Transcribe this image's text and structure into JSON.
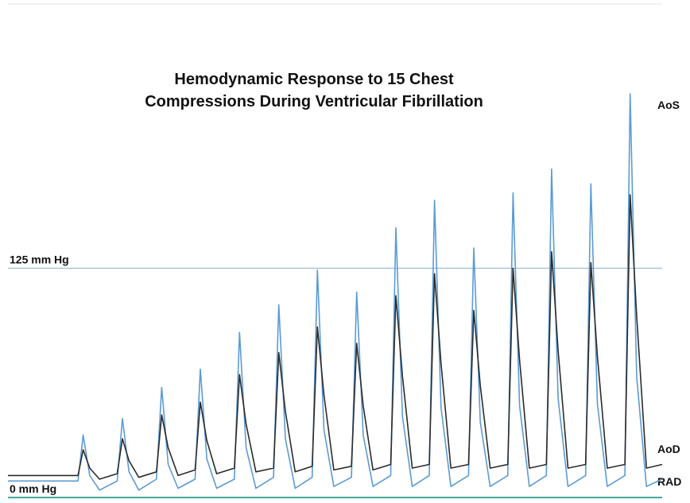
{
  "chart_data": {
    "type": "line",
    "title": [
      "Hemodynamic Response to 15 Chest",
      "Compressions During Ventricular Fibrillation"
    ],
    "annotations": [
      "AoS",
      "AoD",
      "RAD"
    ],
    "x": [
      0,
      10.7,
      11.5,
      12.5,
      14.0,
      16.7,
      17.5,
      18.5,
      20.0,
      22.7,
      23.5,
      24.5,
      26.0,
      28.6,
      29.4,
      30.4,
      31.9,
      34.6,
      35.4,
      36.4,
      37.9,
      40.6,
      41.4,
      42.4,
      43.9,
      46.5,
      47.3,
      48.3,
      49.8,
      52.5,
      53.3,
      54.3,
      55.8,
      58.5,
      59.3,
      60.3,
      61.8,
      64.4,
      65.2,
      66.2,
      67.7,
      70.4,
      71.2,
      72.2,
      73.7,
      76.4,
      77.2,
      78.2,
      79.7,
      82.3,
      83.1,
      84.1,
      85.6,
      88.3,
      89.1,
      90.1,
      91.6,
      94.3,
      95.1,
      96.1,
      97.6,
      100
    ],
    "series": [
      {
        "color": "#5b9bd5",
        "values": [
          9,
          9,
          34,
          12,
          4,
          9,
          43,
          14,
          4,
          10,
          60,
          18,
          5,
          10,
          70,
          21,
          5,
          10,
          90,
          27,
          5,
          11,
          105,
          32,
          5,
          11,
          124,
          37,
          6,
          11,
          112,
          34,
          6,
          12,
          147,
          44,
          6,
          12,
          162,
          49,
          6,
          12,
          136,
          41,
          6,
          12,
          166,
          50,
          6,
          12,
          179,
          54,
          6,
          12,
          171,
          51,
          6,
          12,
          220,
          66,
          6,
          10
        ]
      },
      {
        "color": "#2b2b2b",
        "values": [
          12,
          12,
          26,
          16,
          10,
          13,
          32,
          20,
          11,
          14,
          45,
          27,
          12,
          15,
          52,
          31,
          13,
          16,
          67,
          40,
          14,
          16,
          79,
          47,
          14,
          17,
          93,
          56,
          15,
          17,
          84,
          50,
          15,
          18,
          110,
          66,
          16,
          18,
          122,
          73,
          16,
          18,
          102,
          61,
          16,
          18,
          125,
          75,
          16,
          18,
          134,
          80,
          16,
          18,
          128,
          77,
          16,
          18,
          165,
          99,
          16,
          18
        ]
      }
    ],
    "xlim": [
      0,
      100
    ],
    "ylim": [
      -3,
      269
    ],
    "yticks": [
      {
        "value": 0,
        "label": "0  mm Hg"
      },
      {
        "value": 125,
        "label": "125 mm Hg"
      }
    ],
    "grid": true
  }
}
